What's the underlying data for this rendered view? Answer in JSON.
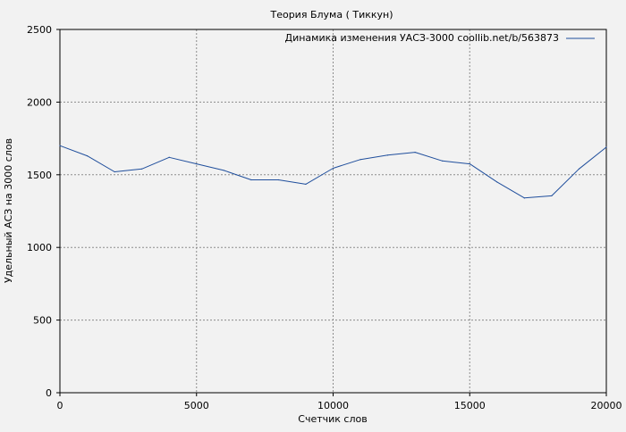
{
  "chart_data": {
    "type": "line",
    "title": "Теория Блума ( Тиккун)",
    "xlabel": "Счетчик слов",
    "ylabel": "Удельный АСЗ на 3000 слов",
    "xlim": [
      0,
      20000
    ],
    "ylim": [
      0,
      2500
    ],
    "x_ticks": [
      "0",
      "5000",
      "10000",
      "15000",
      "20000"
    ],
    "y_ticks": [
      "0",
      "500",
      "1000",
      "1500",
      "2000",
      "2500"
    ],
    "grid": true,
    "legend_position": "top-right",
    "series": [
      {
        "name": "Динамика изменения УАСЗ-3000 coollib.net/b/563873",
        "color": "#1f4e9c",
        "x": [
          0,
          1000,
          2000,
          3000,
          4000,
          5000,
          6000,
          7000,
          8000,
          9000,
          10000,
          11000,
          12000,
          13000,
          14000,
          15000,
          16000,
          17000,
          18000,
          19000,
          20000
        ],
        "y": [
          1700,
          1630,
          1520,
          1540,
          1620,
          1575,
          1530,
          1465,
          1465,
          1435,
          1545,
          1605,
          1635,
          1655,
          1595,
          1575,
          1450,
          1340,
          1355,
          1540,
          1690
        ]
      }
    ]
  },
  "colors": {
    "background": "#f2f2f2",
    "axis": "#000000",
    "grid": "#8c8c8c",
    "line": "#1f4e9c"
  }
}
